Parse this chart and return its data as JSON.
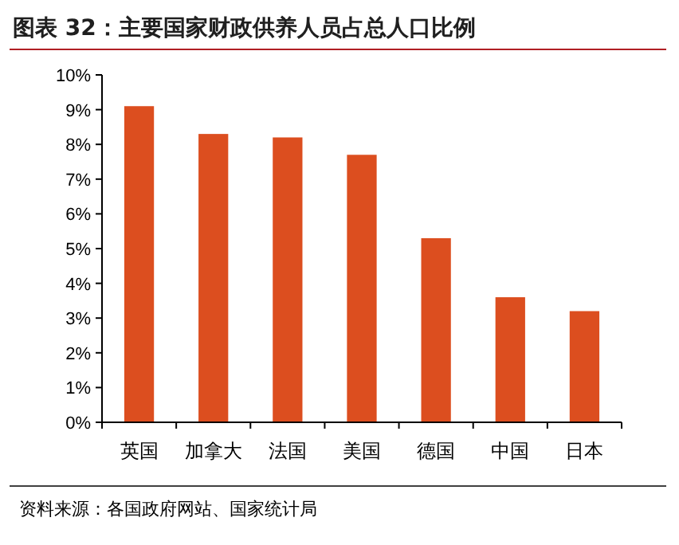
{
  "chart_data": {
    "type": "bar",
    "title": "图表 32：主要国家财政供养人员占总人口比例",
    "categories": [
      "英国",
      "加拿大",
      "法国",
      "美国",
      "德国",
      "中国",
      "日本"
    ],
    "values": [
      9.1,
      8.3,
      8.2,
      7.7,
      5.3,
      3.6,
      3.2
    ],
    "color": "#dc4e1f",
    "ylim": [
      0,
      10
    ],
    "yticks": [
      {
        "value": 0,
        "label": "0%"
      },
      {
        "value": 1,
        "label": "1%"
      },
      {
        "value": 2,
        "label": "2%"
      },
      {
        "value": 3,
        "label": "3%"
      },
      {
        "value": 4,
        "label": "4%"
      },
      {
        "value": 5,
        "label": "5%"
      },
      {
        "value": 6,
        "label": "6%"
      },
      {
        "value": 7,
        "label": "7%"
      },
      {
        "value": 8,
        "label": "8%"
      },
      {
        "value": 9,
        "label": "9%"
      },
      {
        "value": 10,
        "label": "10%"
      }
    ],
    "grid": false,
    "annotations": [
      "资料来源：各国政府网站、国家统计局"
    ]
  }
}
